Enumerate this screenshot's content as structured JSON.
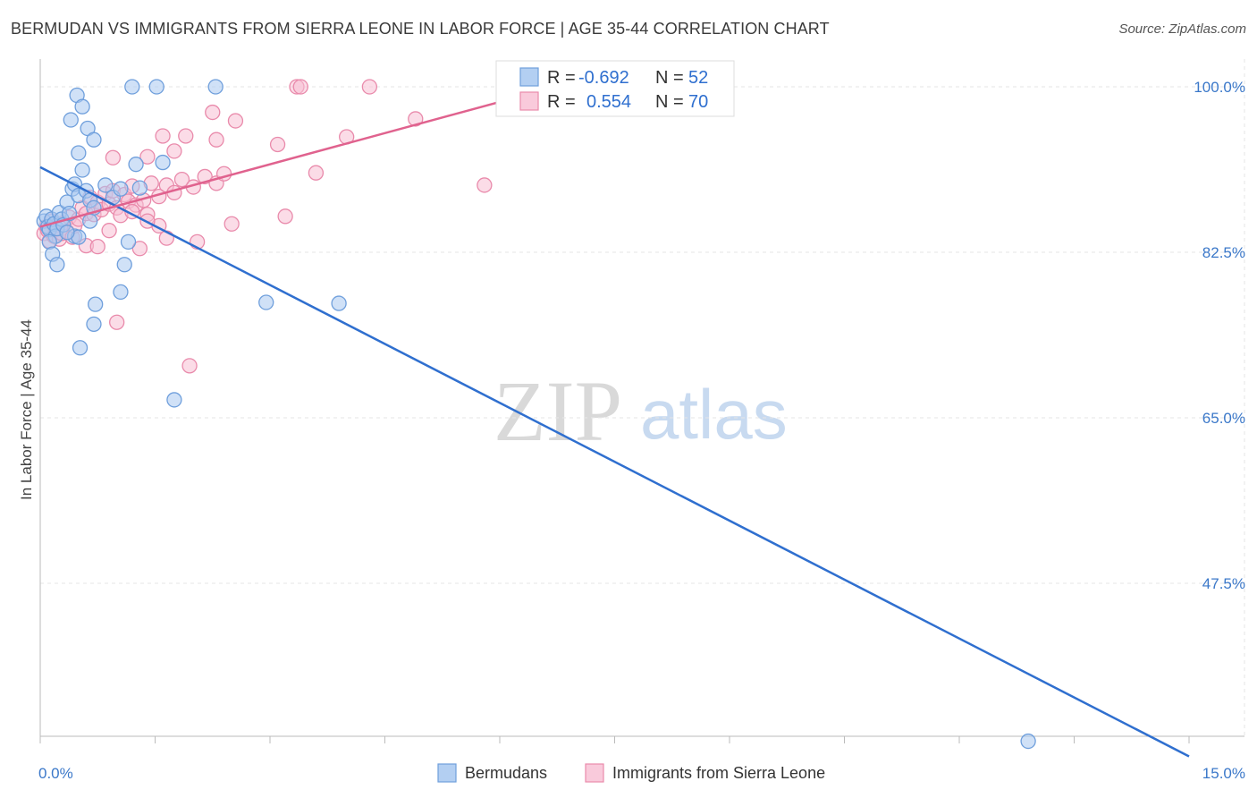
{
  "header": {
    "title": "BERMUDAN VS IMMIGRANTS FROM SIERRA LEONE IN LABOR FORCE | AGE 35-44 CORRELATION CHART",
    "source": "Source: ZipAtlas.com"
  },
  "watermark": {
    "zip": "ZIP",
    "atlas": "atlas"
  },
  "legend": {
    "rows": [
      {
        "r_label": "R =",
        "r_value": "-0.692",
        "n_label": "N =",
        "n_value": "52"
      },
      {
        "r_label": "R =",
        "r_value": "0.554",
        "n_label": "N =",
        "n_value": "70"
      }
    ]
  },
  "colors": {
    "blue_fill": "#a9c8f0",
    "blue_stroke": "#6f9fdc",
    "blue_line": "#2f6fcf",
    "pink_fill": "#f7c0d3",
    "pink_stroke": "#e98aab",
    "pink_line": "#e0628e",
    "tick_text": "#3b78c9",
    "grid": "#e6e6e6"
  },
  "chart_data": {
    "type": "scatter",
    "title": "BERMUDAN VS IMMIGRANTS FROM SIERRA LEONE IN LABOR FORCE | AGE 35-44 CORRELATION CHART",
    "xlabel": "",
    "ylabel": "In Labor Force | Age 35-44",
    "xlim": [
      0,
      15
    ],
    "ylim": [
      29,
      101.5
    ],
    "x_tick_labels": [
      "0.0%",
      "15.0%"
    ],
    "y_ticks": [
      47.5,
      65.0,
      82.5,
      100.0
    ],
    "y_tick_labels": [
      "47.5%",
      "65.0%",
      "82.5%",
      "100.0%"
    ],
    "grid": true,
    "legend_position": "bottom",
    "series": [
      {
        "name": "Bermudans",
        "r": -0.692,
        "n": 52,
        "trend": {
          "x": [
            0.0,
            15.0
          ],
          "y": [
            91.5,
            29.2
          ]
        },
        "points": [
          [
            0.05,
            85.8
          ],
          [
            0.08,
            86.3
          ],
          [
            0.1,
            85.2
          ],
          [
            0.12,
            84.9
          ],
          [
            0.15,
            86.0
          ],
          [
            0.18,
            85.5
          ],
          [
            0.2,
            84.2
          ],
          [
            0.22,
            85.0
          ],
          [
            0.25,
            86.7
          ],
          [
            0.28,
            86.0
          ],
          [
            0.3,
            85.4
          ],
          [
            0.12,
            83.6
          ],
          [
            0.16,
            82.3
          ],
          [
            0.22,
            81.2
          ],
          [
            0.35,
            87.8
          ],
          [
            0.38,
            86.6
          ],
          [
            0.42,
            89.2
          ],
          [
            0.45,
            89.7
          ],
          [
            0.5,
            88.5
          ],
          [
            0.55,
            91.2
          ],
          [
            0.6,
            89.0
          ],
          [
            0.65,
            88.0
          ],
          [
            0.7,
            87.2
          ],
          [
            0.4,
            96.5
          ],
          [
            0.48,
            99.1
          ],
          [
            0.55,
            97.9
          ],
          [
            0.62,
            95.6
          ],
          [
            0.7,
            94.4
          ],
          [
            0.5,
            93.0
          ],
          [
            0.85,
            89.6
          ],
          [
            0.95,
            88.3
          ],
          [
            1.05,
            89.2
          ],
          [
            1.25,
            91.8
          ],
          [
            1.3,
            89.3
          ],
          [
            1.6,
            92.0
          ],
          [
            1.2,
            100.0
          ],
          [
            1.52,
            100.0
          ],
          [
            2.29,
            100.0
          ],
          [
            0.65,
            85.8
          ],
          [
            0.45,
            84.2
          ],
          [
            0.5,
            84.1
          ],
          [
            1.15,
            83.6
          ],
          [
            1.1,
            81.2
          ],
          [
            1.05,
            78.3
          ],
          [
            0.72,
            77.0
          ],
          [
            0.7,
            74.9
          ],
          [
            0.52,
            72.4
          ],
          [
            1.75,
            66.9
          ],
          [
            2.95,
            77.2
          ],
          [
            3.9,
            77.1
          ],
          [
            12.9,
            30.8
          ],
          [
            0.35,
            84.6
          ]
        ]
      },
      {
        "name": "Immigrants from Sierra Leone",
        "r": 0.554,
        "n": 70,
        "trend": {
          "x": [
            0.0,
            6.0
          ],
          "y": [
            85.2,
            98.4
          ]
        },
        "points": [
          [
            0.05,
            84.5
          ],
          [
            0.08,
            85.2
          ],
          [
            0.1,
            84.8
          ],
          [
            0.12,
            83.7
          ],
          [
            0.15,
            85.8
          ],
          [
            0.18,
            84.2
          ],
          [
            0.2,
            85.0
          ],
          [
            0.25,
            83.9
          ],
          [
            0.28,
            84.5
          ],
          [
            0.3,
            85.6
          ],
          [
            0.35,
            84.7
          ],
          [
            0.38,
            86.2
          ],
          [
            0.42,
            84.1
          ],
          [
            0.45,
            85.3
          ],
          [
            0.5,
            86.0
          ],
          [
            0.55,
            87.2
          ],
          [
            0.6,
            86.6
          ],
          [
            0.65,
            88.3
          ],
          [
            0.7,
            86.5
          ],
          [
            0.75,
            87.8
          ],
          [
            0.8,
            87.0
          ],
          [
            0.85,
            88.7
          ],
          [
            0.9,
            87.6
          ],
          [
            0.95,
            89.0
          ],
          [
            1.0,
            87.2
          ],
          [
            1.05,
            86.4
          ],
          [
            1.1,
            88.6
          ],
          [
            1.15,
            87.9
          ],
          [
            1.2,
            89.5
          ],
          [
            1.25,
            87.5
          ],
          [
            1.35,
            88.0
          ],
          [
            1.4,
            86.5
          ],
          [
            1.45,
            89.8
          ],
          [
            1.55,
            88.4
          ],
          [
            1.65,
            89.6
          ],
          [
            1.75,
            88.8
          ],
          [
            1.85,
            90.2
          ],
          [
            2.0,
            89.4
          ],
          [
            2.15,
            90.5
          ],
          [
            2.3,
            89.8
          ],
          [
            0.6,
            83.2
          ],
          [
            0.9,
            84.8
          ],
          [
            1.3,
            82.9
          ],
          [
            1.55,
            85.3
          ],
          [
            1.4,
            85.8
          ],
          [
            0.75,
            83.1
          ],
          [
            2.05,
            83.6
          ],
          [
            2.5,
            85.5
          ],
          [
            3.2,
            86.3
          ],
          [
            3.6,
            90.9
          ],
          [
            4.0,
            94.7
          ],
          [
            3.1,
            93.9
          ],
          [
            2.3,
            94.4
          ],
          [
            2.55,
            96.4
          ],
          [
            2.25,
            97.3
          ],
          [
            1.9,
            94.8
          ],
          [
            1.6,
            94.8
          ],
          [
            1.75,
            93.2
          ],
          [
            1.4,
            92.6
          ],
          [
            0.95,
            92.5
          ],
          [
            3.35,
            100.0
          ],
          [
            3.4,
            100.0
          ],
          [
            4.3,
            100.0
          ],
          [
            4.9,
            96.6
          ],
          [
            5.8,
            89.6
          ],
          [
            2.4,
            90.8
          ],
          [
            1.0,
            75.1
          ],
          [
            1.95,
            70.5
          ],
          [
            1.65,
            84.0
          ],
          [
            1.2,
            86.8
          ]
        ]
      }
    ]
  }
}
